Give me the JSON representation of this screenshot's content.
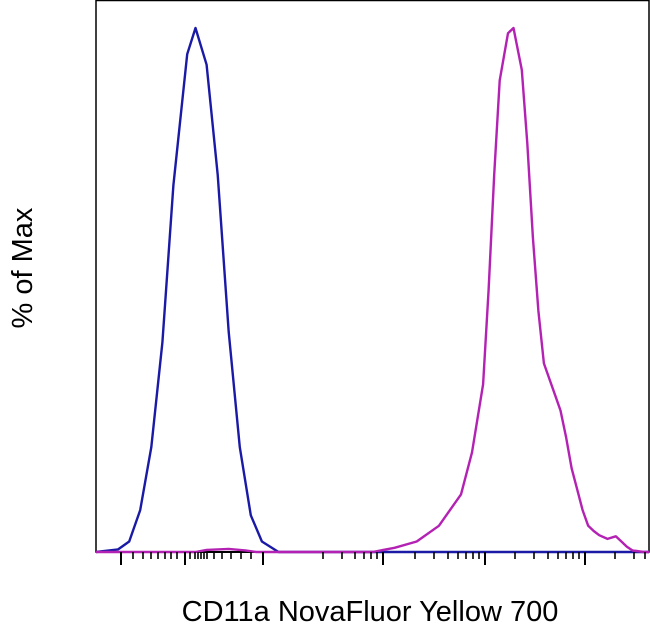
{
  "chart_data": {
    "type": "line",
    "title": "",
    "xlabel": "CD11a NovaFluor Yellow 700",
    "ylabel": "% of Max",
    "xscale": "log (biexponential)",
    "tick_labels_shown": false,
    "ylim": [
      0,
      100
    ],
    "legend": "none",
    "grid": false,
    "series": [
      {
        "color": "#1a1aa6",
        "points": [
          [
            0.0,
            0
          ],
          [
            0.04,
            0.5
          ],
          [
            0.06,
            2
          ],
          [
            0.08,
            8
          ],
          [
            0.1,
            20
          ],
          [
            0.12,
            40
          ],
          [
            0.14,
            70
          ],
          [
            0.165,
            95
          ],
          [
            0.18,
            100
          ],
          [
            0.2,
            93
          ],
          [
            0.22,
            72
          ],
          [
            0.24,
            42
          ],
          [
            0.26,
            20
          ],
          [
            0.28,
            7
          ],
          [
            0.3,
            2
          ],
          [
            0.33,
            0
          ],
          [
            1.0,
            0
          ]
        ]
      },
      {
        "color": "#b322b3",
        "points": [
          [
            0.0,
            0
          ],
          [
            0.18,
            0
          ],
          [
            0.2,
            0.4
          ],
          [
            0.24,
            0.6
          ],
          [
            0.27,
            0.3
          ],
          [
            0.29,
            0
          ],
          [
            0.5,
            0
          ],
          [
            0.54,
            0.8
          ],
          [
            0.58,
            2
          ],
          [
            0.62,
            5
          ],
          [
            0.66,
            11
          ],
          [
            0.68,
            19
          ],
          [
            0.7,
            32
          ],
          [
            0.71,
            50
          ],
          [
            0.72,
            72
          ],
          [
            0.73,
            90
          ],
          [
            0.745,
            99
          ],
          [
            0.755,
            100
          ],
          [
            0.77,
            92
          ],
          [
            0.78,
            78
          ],
          [
            0.79,
            60
          ],
          [
            0.8,
            46
          ],
          [
            0.81,
            36
          ],
          [
            0.83,
            30
          ],
          [
            0.84,
            27
          ],
          [
            0.85,
            22
          ],
          [
            0.86,
            16
          ],
          [
            0.87,
            12
          ],
          [
            0.88,
            8
          ],
          [
            0.89,
            5
          ],
          [
            0.9,
            4
          ],
          [
            0.91,
            3.2
          ],
          [
            0.925,
            2.5
          ],
          [
            0.94,
            3
          ],
          [
            0.95,
            2
          ],
          [
            0.96,
            1
          ],
          [
            0.97,
            0.3
          ],
          [
            0.99,
            0
          ],
          [
            1.0,
            0
          ]
        ]
      }
    ]
  }
}
